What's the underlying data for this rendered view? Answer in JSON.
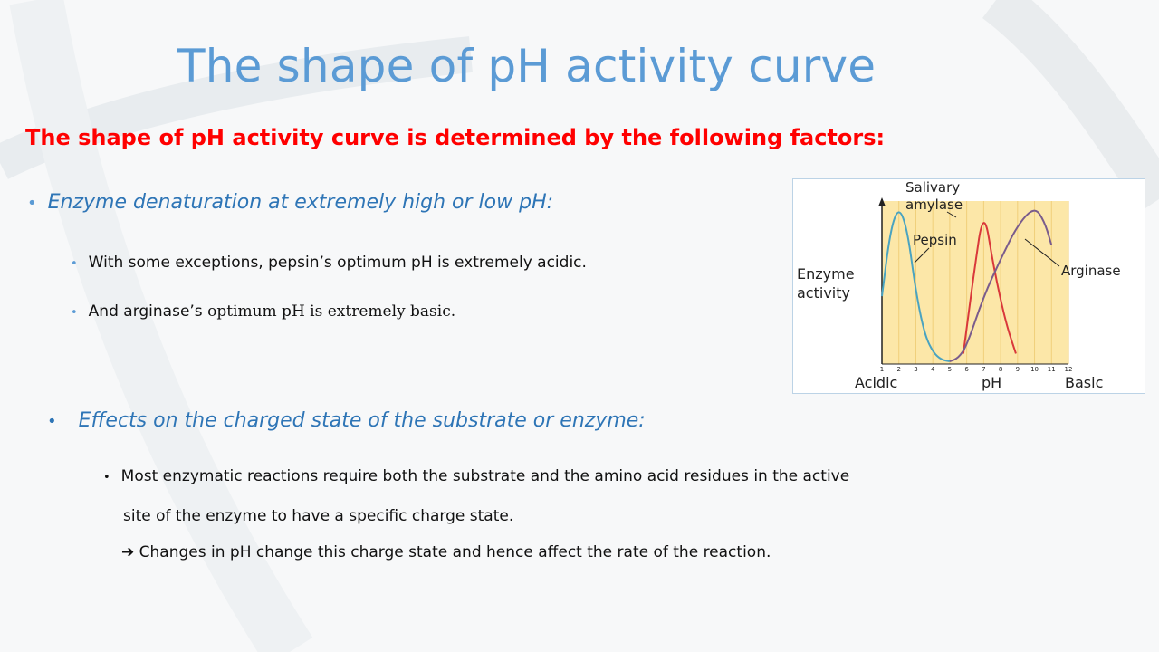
{
  "slide": {
    "title": "The shape of pH activity curve",
    "subtitle": "The shape of pH activity curve is determined by the following factors:",
    "sections": [
      {
        "heading": "Enzyme denaturation at extremely high or low pH:",
        "points": [
          {
            "text": "With some exceptions, pepsin’s optimum pH is extremely acidic."
          },
          {
            "text_sans": "And arginase’s ",
            "text_serif": "optimum pH is extremely basic."
          }
        ]
      },
      {
        "heading": "Effects on the charged state of the substrate or enzyme:",
        "points": [
          {
            "line1": "Most enzymatic reactions require both the substrate and the amino acid residues in the active",
            "line2": "site of the enzyme to have a specific charge state."
          }
        ],
        "conclusion": "Changes in pH change this charge state and hence affect the rate of the reaction."
      }
    ]
  },
  "bullet_glyph": "•",
  "arrow_glyph": "",
  "colors": {
    "title": "#5b9bd5",
    "subtitle": "#ff0000",
    "heading": "#2e75b6",
    "chart_bg": "#fce7a8",
    "pepsin": "#4aa3c0",
    "amylase": "#d9383a",
    "arginase": "#7a5c8c"
  },
  "chart_data": {
    "type": "line",
    "ylabel": "Enzyme\nactivity",
    "xlabel": "pH",
    "x_ticks": [
      "1",
      "2",
      "3",
      "4",
      "5",
      "6",
      "7",
      "8",
      "9",
      "10",
      "11",
      "12"
    ],
    "x_end_labels": {
      "left": "Acidic",
      "right": "Basic"
    },
    "xlim": [
      1,
      12
    ],
    "series": [
      {
        "name": "Pepsin",
        "points": [
          [
            1,
            0.42
          ],
          [
            1.5,
            0.85
          ],
          [
            2,
            1.0
          ],
          [
            2.5,
            0.85
          ],
          [
            3,
            0.45
          ],
          [
            3.5,
            0.18
          ],
          [
            4,
            0.06
          ],
          [
            4.5,
            0.01
          ],
          [
            5,
            0
          ]
        ]
      },
      {
        "name": "Salivary\namylase",
        "points": [
          [
            5.8,
            0.05
          ],
          [
            6.4,
            0.55
          ],
          [
            7,
            1.0
          ],
          [
            7.6,
            0.6
          ],
          [
            8.3,
            0.25
          ],
          [
            8.9,
            0.05
          ]
        ]
      },
      {
        "name": "Arginase",
        "points": [
          [
            5,
            0
          ],
          [
            5.5,
            0.02
          ],
          [
            6,
            0.1
          ],
          [
            7,
            0.42
          ],
          [
            8,
            0.66
          ],
          [
            9,
            0.88
          ],
          [
            10,
            1.0
          ],
          [
            10.6,
            0.9
          ],
          [
            11,
            0.75
          ]
        ]
      }
    ]
  }
}
